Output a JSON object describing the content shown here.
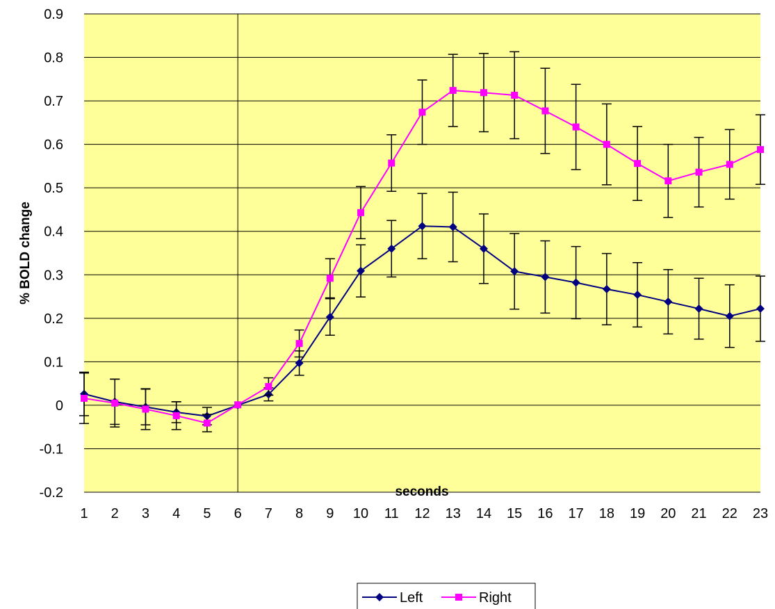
{
  "chart_data": {
    "type": "line",
    "title": "",
    "xlabel": "seconds",
    "ylabel": "% BOLD change",
    "x": [
      1,
      2,
      3,
      4,
      5,
      6,
      7,
      8,
      9,
      10,
      11,
      12,
      13,
      14,
      15,
      16,
      17,
      18,
      19,
      20,
      21,
      22,
      23
    ],
    "ylim": [
      -0.2,
      0.9
    ],
    "ytick_step": 0.1,
    "ytick_labels": [
      "-0.2",
      "-0.1",
      "0",
      "0.1",
      "0.2",
      "0.3",
      "0.4",
      "0.5",
      "0.6",
      "0.7",
      "0.8",
      "0.9"
    ],
    "xtick_labels": [
      "1",
      "2",
      "3",
      "4",
      "5",
      "6",
      "7",
      "8",
      "9",
      "10",
      "11",
      "12",
      "13",
      "14",
      "15",
      "16",
      "17",
      "18",
      "19",
      "20",
      "21",
      "22",
      "23"
    ],
    "vertical_reference_x": 6,
    "grid": "horizontal",
    "plot_background": "#FFFF99",
    "legend_position": "bottom",
    "series": [
      {
        "name": "Left",
        "color": "#000080",
        "marker": "diamond",
        "values": [
          0.026,
          0.008,
          -0.004,
          -0.016,
          -0.025,
          0.0,
          0.025,
          0.097,
          0.203,
          0.309,
          0.36,
          0.412,
          0.41,
          0.36,
          0.308,
          0.295,
          0.282,
          0.267,
          0.254,
          0.238,
          0.222,
          0.205,
          0.222
        ],
        "errors": [
          0.05,
          0.052,
          0.041,
          0.024,
          0.02,
          0.0,
          0.015,
          0.028,
          0.042,
          0.06,
          0.065,
          0.075,
          0.08,
          0.08,
          0.087,
          0.083,
          0.083,
          0.082,
          0.074,
          0.074,
          0.07,
          0.072,
          0.075
        ]
      },
      {
        "name": "Right",
        "color": "#FF00FF",
        "marker": "square",
        "values": [
          0.016,
          0.005,
          -0.009,
          -0.024,
          -0.041,
          0.001,
          0.043,
          0.142,
          0.292,
          0.443,
          0.557,
          0.674,
          0.724,
          0.719,
          0.713,
          0.677,
          0.64,
          0.6,
          0.556,
          0.516,
          0.536,
          0.554,
          0.588
        ],
        "errors": [
          0.058,
          0.055,
          0.047,
          0.032,
          0.02,
          0.0,
          0.02,
          0.031,
          0.045,
          0.06,
          0.065,
          0.074,
          0.083,
          0.09,
          0.1,
          0.098,
          0.098,
          0.093,
          0.085,
          0.084,
          0.08,
          0.08,
          0.08
        ]
      }
    ]
  }
}
